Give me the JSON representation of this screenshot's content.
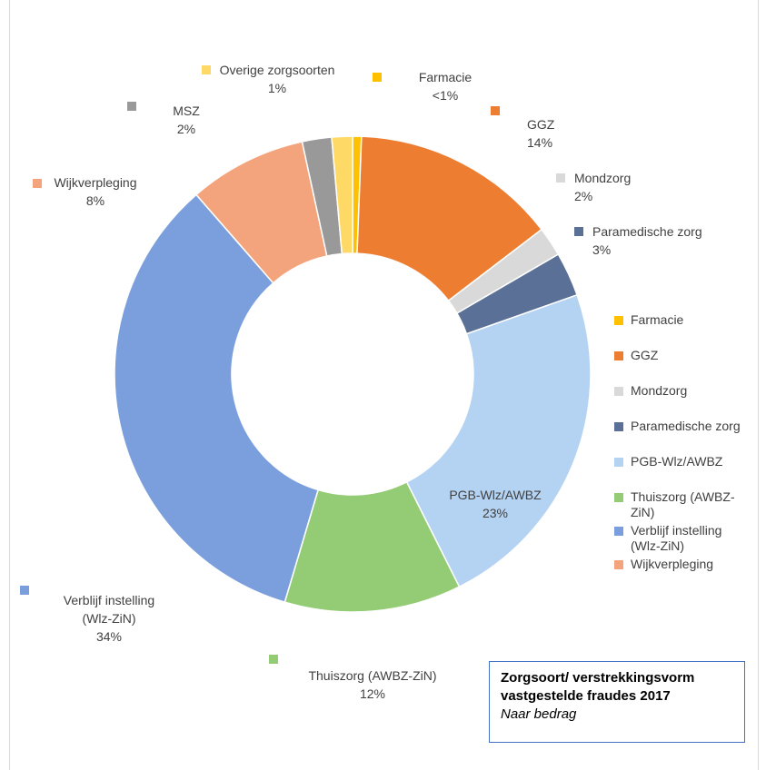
{
  "chart_data": {
    "type": "pie",
    "subtype": "doughnut",
    "slices": [
      {
        "name": "Farmacie",
        "value": 0.6,
        "label": "<1%",
        "color": "#ffc000"
      },
      {
        "name": "GGZ",
        "value": 14,
        "label": "14%",
        "color": "#ed7d31"
      },
      {
        "name": "Mondzorg",
        "value": 2,
        "label": "2%",
        "color": "#d9d9d9"
      },
      {
        "name": "Paramedische zorg",
        "value": 3,
        "label": "3%",
        "color": "#5b7096"
      },
      {
        "name": "PGB-Wlz/AWBZ",
        "value": 23,
        "label": "23%",
        "color": "#b4d3f2"
      },
      {
        "name": "Thuiszorg (AWBZ-ZiN)",
        "value": 12,
        "label": "12%",
        "color": "#93cc74"
      },
      {
        "name": "Verblijf instelling (Wlz-ZiN)",
        "value": 34,
        "label": "34%",
        "color": "#7b9fdc"
      },
      {
        "name": "Wijkverpleging",
        "value": 8,
        "label": "8%",
        "color": "#f4a47c"
      },
      {
        "name": "MSZ",
        "value": 2,
        "label": "2%",
        "color": "#999999"
      },
      {
        "name": "Overige zorgsoorten",
        "value": 1.4,
        "label": "1%",
        "color": "#ffd966"
      }
    ],
    "legend": {
      "placement": "right",
      "entries": [
        {
          "lines": [
            "Farmacie"
          ],
          "color": "#ffc000"
        },
        {
          "lines": [
            "GGZ"
          ],
          "color": "#ed7d31"
        },
        {
          "lines": [
            "Mondzorg"
          ],
          "color": "#d9d9d9"
        },
        {
          "lines": [
            "Paramedische zorg"
          ],
          "color": "#5b7096"
        },
        {
          "lines": [
            "PGB-Wlz/AWBZ"
          ],
          "color": "#b4d3f2"
        },
        {
          "lines": [
            "Thuiszorg (AWBZ-",
            "ZiN)"
          ],
          "color": "#93cc74"
        },
        {
          "lines": [
            "Verblijf instelling",
            "(Wlz-ZiN)"
          ],
          "color": "#7b9fdc"
        },
        {
          "lines": [
            "Wijkverpleging"
          ],
          "color": "#f4a47c"
        }
      ]
    },
    "data_labels": [
      {
        "lines": [
          "Overige zorgsoorten",
          "1%"
        ],
        "color": "#ffd966",
        "slice": "Overige zorgsoorten"
      },
      {
        "lines": [
          "Farmacie",
          "<1%"
        ],
        "color": "#ffc000",
        "slice": "Farmacie"
      },
      {
        "lines": [
          "GGZ",
          "14%"
        ],
        "color": "#ed7d31",
        "slice": "GGZ"
      },
      {
        "lines": [
          "Mondzorg",
          "2%"
        ],
        "color": "#d9d9d9",
        "slice": "Mondzorg"
      },
      {
        "lines": [
          "Paramedische zorg",
          "3%"
        ],
        "color": "#5b7096",
        "slice": "Paramedische zorg"
      },
      {
        "lines": [
          "PGB-Wlz/AWBZ",
          "23%"
        ],
        "color": null,
        "slice": "PGB-Wlz/AWBZ"
      },
      {
        "lines": [
          "Thuiszorg (AWBZ-ZiN)",
          "12%"
        ],
        "color": "#93cc74",
        "slice": "Thuiszorg (AWBZ-ZiN)"
      },
      {
        "lines": [
          "Verblijf instelling",
          "(Wlz-ZiN)",
          "34%"
        ],
        "color": "#7b9fdc",
        "slice": "Verblijf instelling (Wlz-ZiN)"
      },
      {
        "lines": [
          "Wijkverpleging",
          "8%"
        ],
        "color": "#f4a47c",
        "slice": "Wijkverpleging"
      },
      {
        "lines": [
          "MSZ",
          "2%"
        ],
        "color": "#999999",
        "slice": "MSZ"
      }
    ]
  },
  "caption": {
    "line1": "Zorgsoort/ verstrekkingsvorm",
    "line2": "vastgestelde fraudes 2017",
    "line3": "Naar bedrag"
  }
}
